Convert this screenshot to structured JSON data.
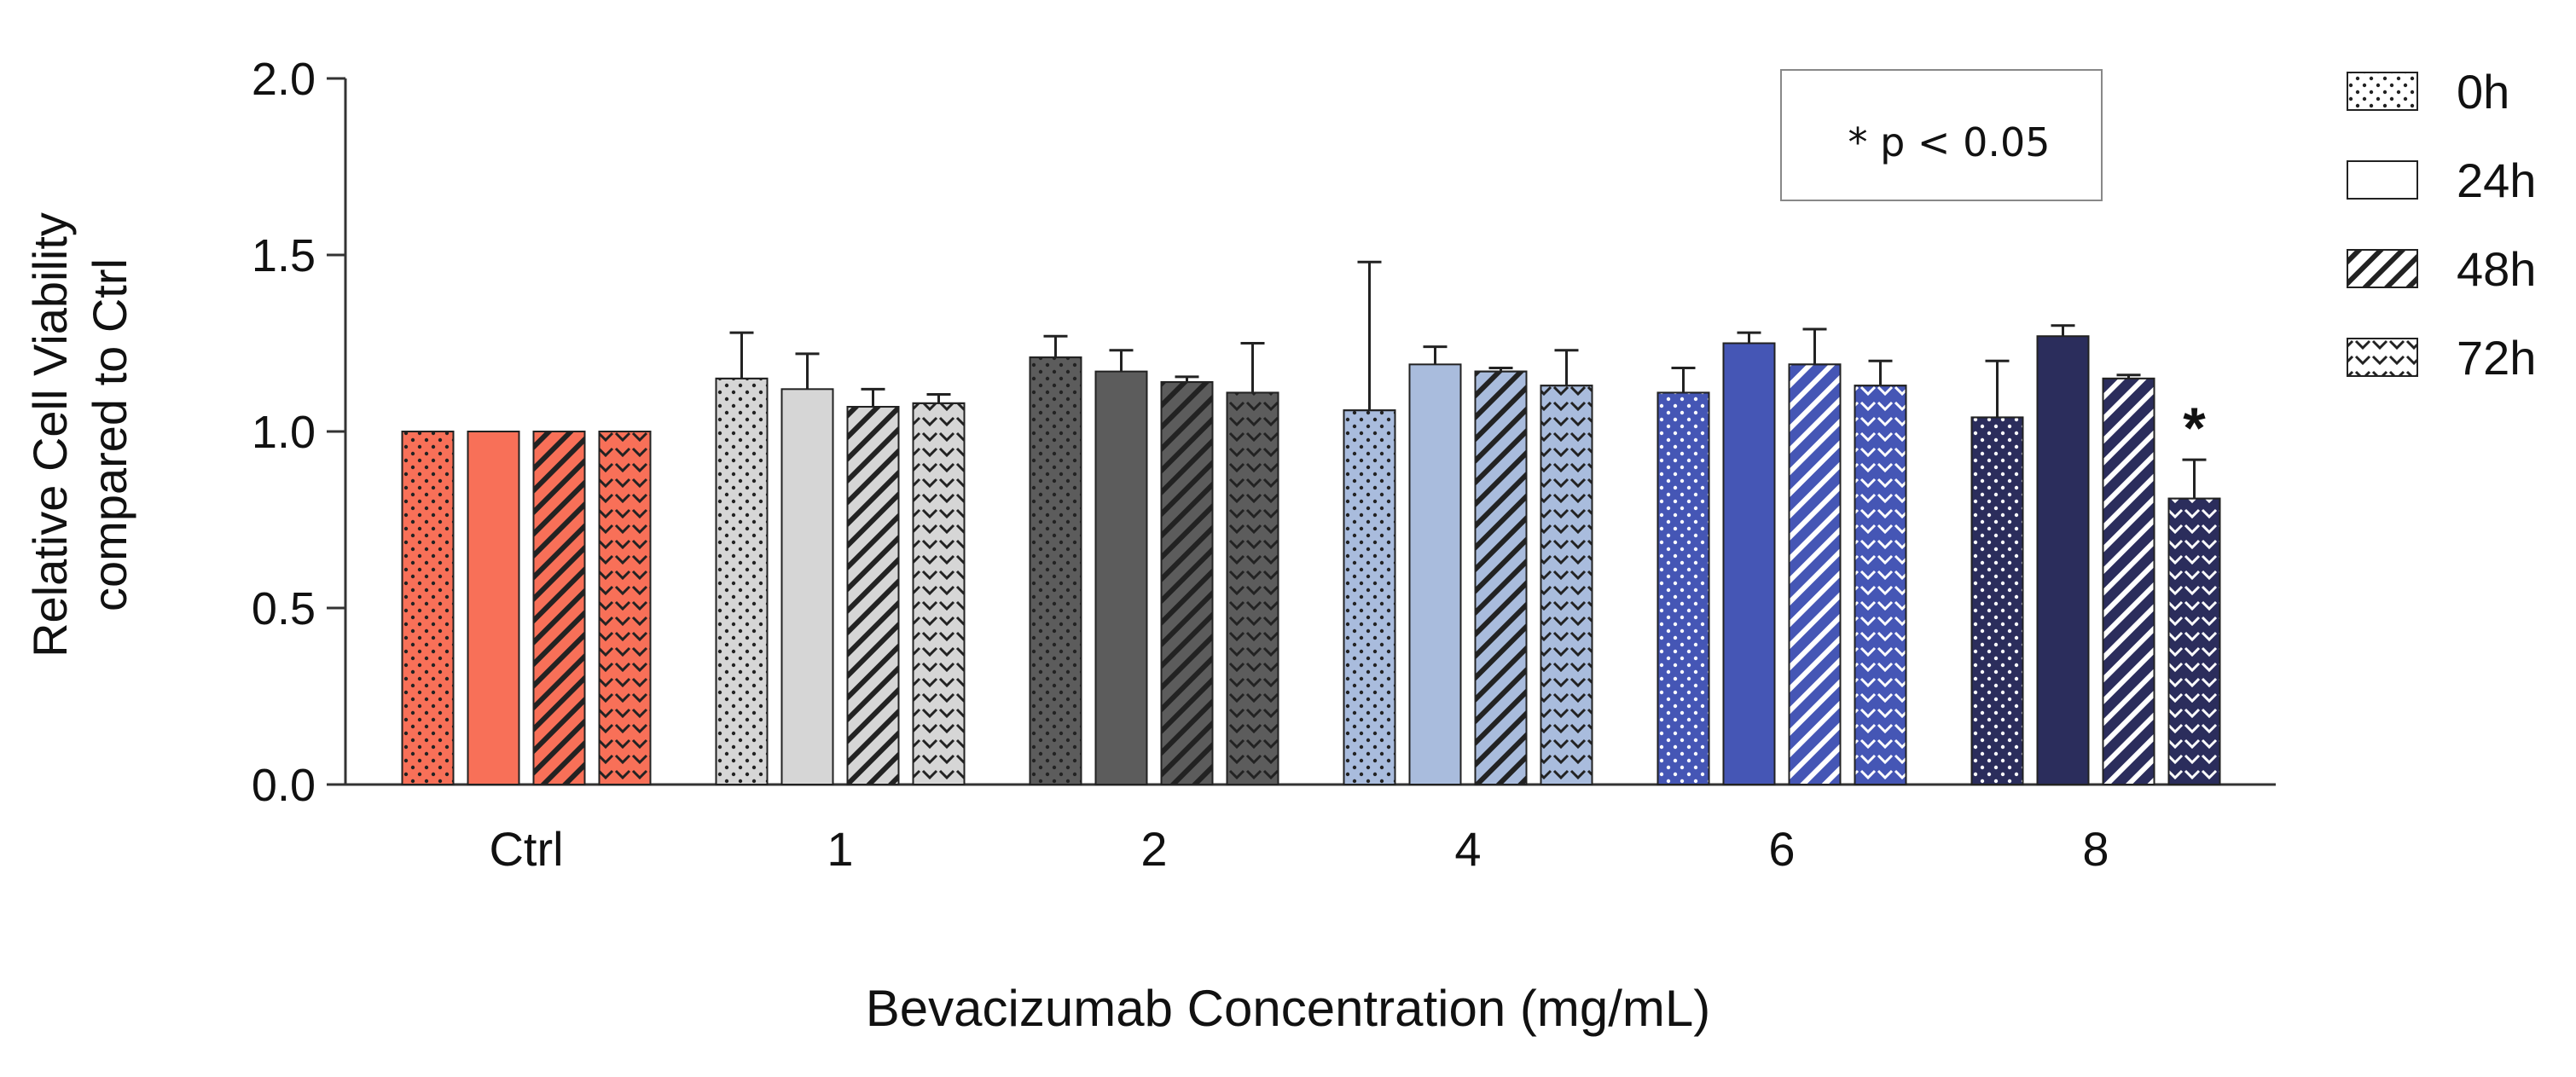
{
  "chart_data": {
    "type": "bar",
    "title": "",
    "xlabel": "Bevacizumab Concentration (mg/mL)",
    "ylabel_lines": [
      "Relative Cell Viability",
      "compared to Ctrl"
    ],
    "ylim": [
      0,
      2.0
    ],
    "yticks": [
      "0.0",
      "0.5",
      "1.0",
      "1.5",
      "2.0"
    ],
    "categories": [
      "Ctrl",
      "1",
      "2",
      "4",
      "6",
      "8"
    ],
    "group_colors": [
      "#F87058",
      "#D6D6D6",
      "#5C5C5C",
      "#A9BCDD",
      "#4556B5",
      "#2B2D5C"
    ],
    "series": [
      {
        "name": "0h",
        "pattern": "dots",
        "values": [
          1.0,
          1.15,
          1.21,
          1.06,
          1.11,
          1.04
        ],
        "errors": [
          0.0,
          0.13,
          0.06,
          0.42,
          0.07,
          0.16
        ]
      },
      {
        "name": "24h",
        "pattern": "solid",
        "values": [
          1.0,
          1.12,
          1.17,
          1.19,
          1.25,
          1.27
        ],
        "errors": [
          0.0,
          0.1,
          0.06,
          0.05,
          0.03,
          0.03
        ]
      },
      {
        "name": "48h",
        "pattern": "hatch",
        "values": [
          1.0,
          1.07,
          1.14,
          1.17,
          1.19,
          1.15
        ],
        "errors": [
          0.0,
          0.05,
          0.015,
          0.01,
          0.1,
          0.01
        ]
      },
      {
        "name": "72h",
        "pattern": "chevron",
        "values": [
          1.0,
          1.08,
          1.11,
          1.13,
          1.13,
          0.81
        ],
        "errors": [
          0.0,
          0.025,
          0.14,
          0.1,
          0.07,
          0.11
        ]
      }
    ],
    "annotations": [
      {
        "text": "*",
        "category": "8",
        "series": "72h"
      }
    ],
    "note": "* p < 0.05",
    "legend_position": "right"
  }
}
